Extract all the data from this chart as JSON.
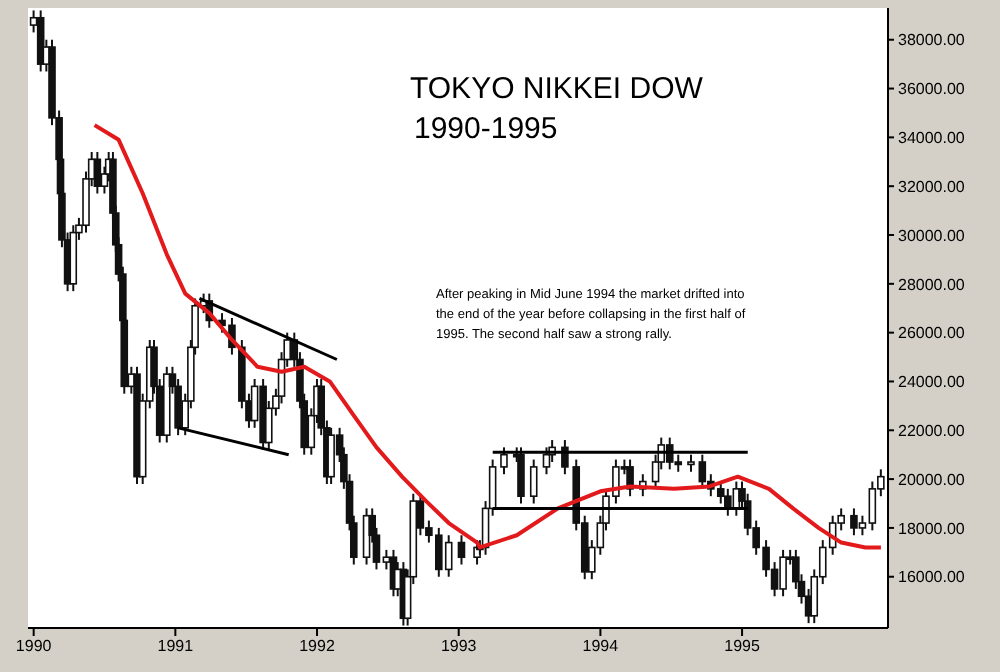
{
  "chart_data": {
    "type": "candlestick",
    "title": "TOKYO NIKKEI DOW",
    "subtitle": "1990-1995",
    "annotations": [
      "After peaking in Mid June 1994 the market drifted into the end of the year before collapsing in the first half of 1995. The second half saw a strong rally."
    ],
    "color": "#111111",
    "legend": false,
    "xlim": [
      1989.96,
      1996.03
    ],
    "xticks": [
      1990,
      1991,
      1992,
      1993,
      1994,
      1995
    ],
    "ylim": [
      13900,
      39300
    ],
    "yticks": [
      {
        "value": 16000,
        "label": "16000.00"
      },
      {
        "value": 18000,
        "label": "18000.00"
      },
      {
        "value": 20000,
        "label": "20000.00"
      },
      {
        "value": 22000,
        "label": "22000.00"
      },
      {
        "value": 24000,
        "label": "24000.00"
      },
      {
        "value": 26000,
        "label": "26000.00"
      },
      {
        "value": 28000,
        "label": "28000.00"
      },
      {
        "value": 30000,
        "label": "30000.00"
      },
      {
        "value": 32000,
        "label": "32000.00"
      },
      {
        "value": 34000,
        "label": "34000.00"
      },
      {
        "value": 36000,
        "label": "36000.00"
      },
      {
        "value": 38000,
        "label": "38000.00"
      }
    ],
    "x": [
      1990.0,
      1990.05,
      1990.09,
      1990.13,
      1990.18,
      1990.19,
      1990.2,
      1990.24,
      1990.28,
      1990.32,
      1990.37,
      1990.41,
      1990.45,
      1990.5,
      1990.53,
      1990.56,
      1990.58,
      1990.6,
      1990.63,
      1990.64,
      1990.69,
      1990.73,
      1990.77,
      1990.82,
      1990.85,
      1990.89,
      1990.94,
      1990.98,
      1991.02,
      1991.07,
      1991.11,
      1991.14,
      1991.2,
      1991.24,
      1991.33,
      1991.4,
      1991.47,
      1991.52,
      1991.56,
      1991.62,
      1991.66,
      1991.71,
      1991.75,
      1991.79,
      1991.84,
      1991.88,
      1991.91,
      1991.96,
      1992.0,
      1992.03,
      1992.07,
      1992.1,
      1992.16,
      1992.19,
      1992.23,
      1992.26,
      1992.35,
      1992.39,
      1992.42,
      1992.49,
      1992.54,
      1992.57,
      1992.61,
      1992.64,
      1992.68,
      1992.73,
      1992.79,
      1992.86,
      1992.93,
      1993.02,
      1993.13,
      1993.15,
      1993.19,
      1993.24,
      1993.32,
      1993.41,
      1993.44,
      1993.53,
      1993.62,
      1993.66,
      1993.75,
      1993.83,
      1993.89,
      1993.94,
      1994.0,
      1994.04,
      1994.11,
      1994.17,
      1994.21,
      1994.3,
      1994.39,
      1994.43,
      1994.49,
      1994.55,
      1994.64,
      1994.72,
      1994.78,
      1994.85,
      1994.9,
      1994.96,
      1995.0,
      1995.04,
      1995.1,
      1995.17,
      1995.23,
      1995.29,
      1995.34,
      1995.38,
      1995.42,
      1995.47,
      1995.51,
      1995.57,
      1995.64,
      1995.7,
      1995.79,
      1995.85,
      1995.92,
      1995.98
    ],
    "ohlc": [
      [
        38600,
        39200,
        38300,
        38900
      ],
      [
        38900,
        39200,
        36700,
        37000
      ],
      [
        37000,
        38000,
        36700,
        37700
      ],
      [
        37700,
        38000,
        34500,
        34800
      ],
      [
        34800,
        35100,
        32800,
        33100
      ],
      [
        33100,
        33400,
        31400,
        31700
      ],
      [
        31700,
        32000,
        29500,
        29800
      ],
      [
        29800,
        30100,
        27700,
        28000
      ],
      [
        28000,
        30400,
        27700,
        30100
      ],
      [
        30100,
        30700,
        29800,
        30400
      ],
      [
        30400,
        32600,
        30100,
        32300
      ],
      [
        32300,
        33400,
        32000,
        33100
      ],
      [
        33100,
        33400,
        31700,
        32000
      ],
      [
        32000,
        32800,
        31700,
        32500
      ],
      [
        32500,
        33400,
        32200,
        33100
      ],
      [
        33100,
        33400,
        30600,
        30900
      ],
      [
        30900,
        31200,
        29300,
        29600
      ],
      [
        29600,
        29900,
        28100,
        28400
      ],
      [
        28400,
        28700,
        26200,
        26500
      ],
      [
        26500,
        26800,
        23500,
        23800
      ],
      [
        23800,
        24600,
        23500,
        24300
      ],
      [
        24300,
        24600,
        19800,
        20100
      ],
      [
        20100,
        23500,
        19800,
        23200
      ],
      [
        23200,
        25700,
        22900,
        25400
      ],
      [
        25400,
        25700,
        23500,
        23800
      ],
      [
        23800,
        24100,
        21500,
        21800
      ],
      [
        21800,
        24600,
        21500,
        24300
      ],
      [
        24300,
        24600,
        23500,
        23800
      ],
      [
        23800,
        24100,
        21800,
        22100
      ],
      [
        22100,
        23500,
        21800,
        23200
      ],
      [
        23200,
        25700,
        22900,
        25400
      ],
      [
        25400,
        27400,
        25100,
        27100
      ],
      [
        27100,
        27600,
        26800,
        27300
      ],
      [
        27300,
        27600,
        26200,
        26500
      ],
      [
        26500,
        26800,
        26000,
        26300
      ],
      [
        26300,
        26600,
        25100,
        25400
      ],
      [
        25400,
        25700,
        22900,
        23200
      ],
      [
        23200,
        23500,
        22100,
        22400
      ],
      [
        22400,
        24100,
        22100,
        23800
      ],
      [
        23800,
        24100,
        21200,
        21500
      ],
      [
        21500,
        23200,
        21200,
        22900
      ],
      [
        22900,
        23700,
        22600,
        23400
      ],
      [
        23400,
        25200,
        23100,
        24900
      ],
      [
        24900,
        26000,
        24600,
        25700
      ],
      [
        25700,
        26000,
        24600,
        24900
      ],
      [
        24900,
        25200,
        22900,
        23200
      ],
      [
        23200,
        23500,
        21000,
        21300
      ],
      [
        21300,
        22900,
        21000,
        22600
      ],
      [
        22600,
        24100,
        22300,
        23800
      ],
      [
        23800,
        24100,
        21800,
        22100
      ],
      [
        22100,
        22400,
        19800,
        20100
      ],
      [
        20100,
        22100,
        19800,
        21800
      ],
      [
        21800,
        22100,
        20700,
        21000
      ],
      [
        21000,
        21300,
        19600,
        19900
      ],
      [
        19900,
        20200,
        17900,
        18200
      ],
      [
        18200,
        18500,
        16500,
        16800
      ],
      [
        16800,
        18800,
        16500,
        18500
      ],
      [
        18500,
        18800,
        17400,
        17700
      ],
      [
        17700,
        18000,
        16300,
        16600
      ],
      [
        16600,
        17100,
        16300,
        16800
      ],
      [
        16800,
        17100,
        15200,
        15500
      ],
      [
        15500,
        16600,
        15200,
        16300
      ],
      [
        16300,
        16600,
        14000,
        14300
      ],
      [
        14300,
        16300,
        14000,
        16000
      ],
      [
        16000,
        19400,
        15700,
        19100
      ],
      [
        19100,
        19400,
        17700,
        18000
      ],
      [
        18000,
        18300,
        17400,
        17700
      ],
      [
        17700,
        18000,
        16000,
        16300
      ],
      [
        16300,
        17700,
        16000,
        17400
      ],
      [
        17400,
        17700,
        16500,
        16800
      ],
      [
        16800,
        17500,
        16500,
        17200
      ],
      [
        17200,
        17500,
        16900,
        17200
      ],
      [
        17200,
        19100,
        16900,
        18800
      ],
      [
        18800,
        20800,
        18500,
        20500
      ],
      [
        20500,
        21300,
        20200,
        21000
      ],
      [
        21000,
        21300,
        20700,
        21000
      ],
      [
        21000,
        21300,
        19000,
        19300
      ],
      [
        19300,
        20800,
        19000,
        20500
      ],
      [
        20500,
        21300,
        20200,
        21000
      ],
      [
        21000,
        21600,
        20700,
        21300
      ],
      [
        21300,
        21600,
        20200,
        20500
      ],
      [
        20500,
        20800,
        17900,
        18200
      ],
      [
        18200,
        18500,
        15900,
        16200
      ],
      [
        16200,
        17500,
        15900,
        17200
      ],
      [
        17200,
        18500,
        16900,
        18200
      ],
      [
        18200,
        19600,
        17900,
        19300
      ],
      [
        19300,
        20800,
        19000,
        20500
      ],
      [
        20500,
        20800,
        20200,
        20500
      ],
      [
        20500,
        20800,
        19300,
        19600
      ],
      [
        19600,
        20200,
        19300,
        19900
      ],
      [
        19900,
        21000,
        19600,
        20700
      ],
      [
        20700,
        21700,
        20400,
        21400
      ],
      [
        21400,
        21700,
        20400,
        20700
      ],
      [
        20700,
        21000,
        20300,
        20600
      ],
      [
        20600,
        21000,
        20300,
        20700
      ],
      [
        20700,
        21000,
        19600,
        19900
      ],
      [
        19900,
        20200,
        19300,
        19600
      ],
      [
        19600,
        19900,
        19000,
        19300
      ],
      [
        19300,
        19600,
        18500,
        18800
      ],
      [
        18800,
        19900,
        18500,
        19600
      ],
      [
        19600,
        19900,
        18800,
        19100
      ],
      [
        19100,
        19400,
        17700,
        18000
      ],
      [
        18000,
        18300,
        16900,
        17200
      ],
      [
        17200,
        17500,
        16000,
        16300
      ],
      [
        16300,
        16600,
        15200,
        15500
      ],
      [
        15500,
        17100,
        15200,
        16800
      ],
      [
        16800,
        17100,
        16500,
        16800
      ],
      [
        16800,
        17100,
        15500,
        15800
      ],
      [
        15800,
        16100,
        14900,
        15200
      ],
      [
        15200,
        15500,
        14100,
        14400
      ],
      [
        14400,
        16300,
        14100,
        16000
      ],
      [
        16000,
        17500,
        15700,
        17200
      ],
      [
        17200,
        18500,
        16900,
        18200
      ],
      [
        18200,
        18800,
        17900,
        18500
      ],
      [
        18500,
        18800,
        17700,
        18000
      ],
      [
        18000,
        18500,
        17700,
        18200
      ],
      [
        18200,
        19900,
        17900,
        19600
      ],
      [
        19600,
        20400,
        19300,
        20100
      ]
    ],
    "series": [
      {
        "type": "line",
        "color": "#e31a1c",
        "x": [
          1990.43,
          1990.6,
          1990.77,
          1990.94,
          1991.07,
          1991.24,
          1991.4,
          1991.58,
          1991.75,
          1991.91,
          1992.09,
          1992.26,
          1992.42,
          1992.6,
          1992.77,
          1992.93,
          1993.13,
          1993.15,
          1993.41,
          1993.7,
          1994.0,
          1994.21,
          1994.52,
          1994.77,
          1994.97,
          1995.19,
          1995.36,
          1995.54,
          1995.7,
          1995.87,
          1995.98
        ],
        "values": [
          34500,
          33900,
          31700,
          29200,
          27600,
          26800,
          25700,
          24600,
          24400,
          24600,
          24000,
          22600,
          21300,
          20100,
          19100,
          18200,
          17400,
          17200,
          17700,
          18800,
          19500,
          19700,
          19600,
          19700,
          20100,
          19600,
          18800,
          18000,
          17400,
          17200,
          17200
        ]
      },
      {
        "type": "line",
        "color": "#000000",
        "x": [
          1991.17,
          1992.14
        ],
        "values": [
          27400,
          24900
        ]
      },
      {
        "type": "line",
        "color": "#000000",
        "x": [
          1991.02,
          1991.8
        ],
        "values": [
          22100,
          21000
        ]
      },
      {
        "type": "line",
        "color": "#000000",
        "x": [
          1993.24,
          1995.04
        ],
        "values": [
          21100,
          21100
        ]
      },
      {
        "type": "line",
        "color": "#000000",
        "x": [
          1993.24,
          1995.04
        ],
        "values": [
          18800,
          18800
        ]
      }
    ]
  }
}
